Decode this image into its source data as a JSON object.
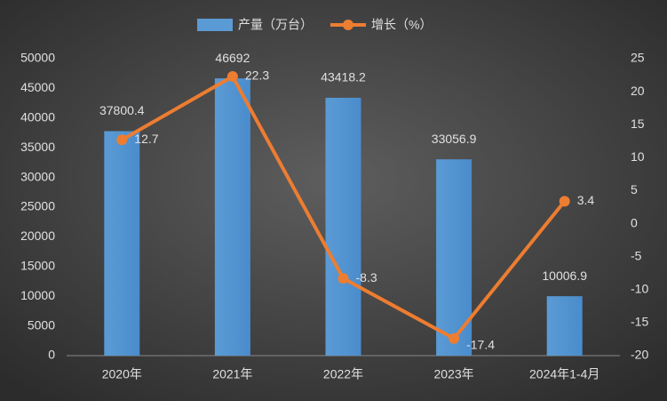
{
  "chart_data": {
    "type": "combo",
    "categories": [
      "2020年",
      "2021年",
      "2022年",
      "2023年",
      "2024年1-4月"
    ],
    "series": [
      {
        "name": "产量（万台）",
        "type": "bar",
        "color": "#5b9bd5",
        "values": [
          37800.4,
          46692,
          43418.2,
          33056.9,
          10006.9
        ]
      },
      {
        "name": "增长（%）",
        "type": "line",
        "axis": "y2",
        "color": "#ed7d31",
        "values": [
          12.7,
          22.3,
          -8.3,
          -17.4,
          3.4
        ]
      }
    ],
    "ylim": [
      0,
      50000
    ],
    "yticks": [
      0,
      5000,
      10000,
      15000,
      20000,
      25000,
      30000,
      35000,
      40000,
      45000,
      50000
    ],
    "y2lim": [
      -20,
      25
    ],
    "y2ticks": [
      -20,
      -15,
      -10,
      -5,
      0,
      5,
      10,
      15,
      20,
      25
    ],
    "grid": false
  }
}
